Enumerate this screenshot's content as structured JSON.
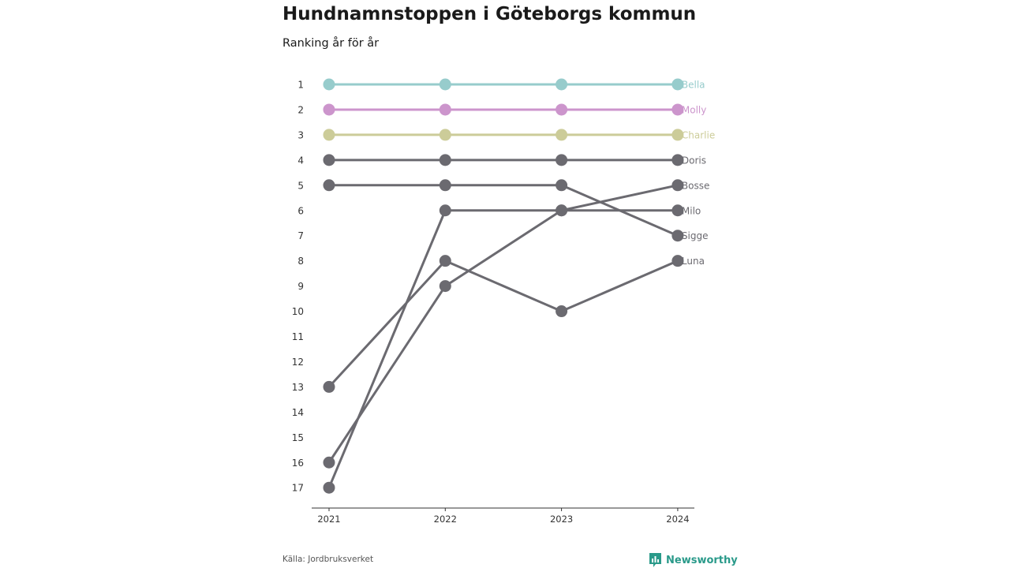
{
  "source": "Källa: Jordbruksverket",
  "brand": {
    "name": "Newsworthy",
    "color": "#2a9a8a"
  },
  "chart_data": {
    "type": "line",
    "title": "Hundnamnstoppen i Göteborgs kommun",
    "subtitle": "Ranking år för år",
    "x": [
      "2021",
      "2022",
      "2023",
      "2024"
    ],
    "y_ticks": [
      1,
      2,
      3,
      4,
      5,
      6,
      7,
      8,
      9,
      10,
      11,
      12,
      13,
      14,
      15,
      16,
      17
    ],
    "ylim": [
      1,
      17
    ],
    "y_reversed": true,
    "grid": false,
    "series": [
      {
        "name": "Bella",
        "values": [
          1,
          1,
          1,
          1
        ],
        "color": "#97cccc"
      },
      {
        "name": "Molly",
        "values": [
          2,
          2,
          2,
          2
        ],
        "color": "#cc95cc"
      },
      {
        "name": "Charlie",
        "values": [
          3,
          3,
          3,
          3
        ],
        "color": "#cccc99"
      },
      {
        "name": "Doris",
        "values": [
          4,
          4,
          4,
          4
        ],
        "color": "#6b6a70"
      },
      {
        "name": "Bosse",
        "values": [
          16,
          9,
          6,
          5
        ],
        "color": "#6b6a70"
      },
      {
        "name": "Milo",
        "values": [
          17,
          6,
          6,
          6
        ],
        "color": "#6b6a70"
      },
      {
        "name": "Sigge",
        "values": [
          5,
          5,
          5,
          7
        ],
        "color": "#6b6a70"
      },
      {
        "name": "Luna",
        "values": [
          13,
          8,
          10,
          8
        ],
        "color": "#6b6a70"
      }
    ]
  }
}
